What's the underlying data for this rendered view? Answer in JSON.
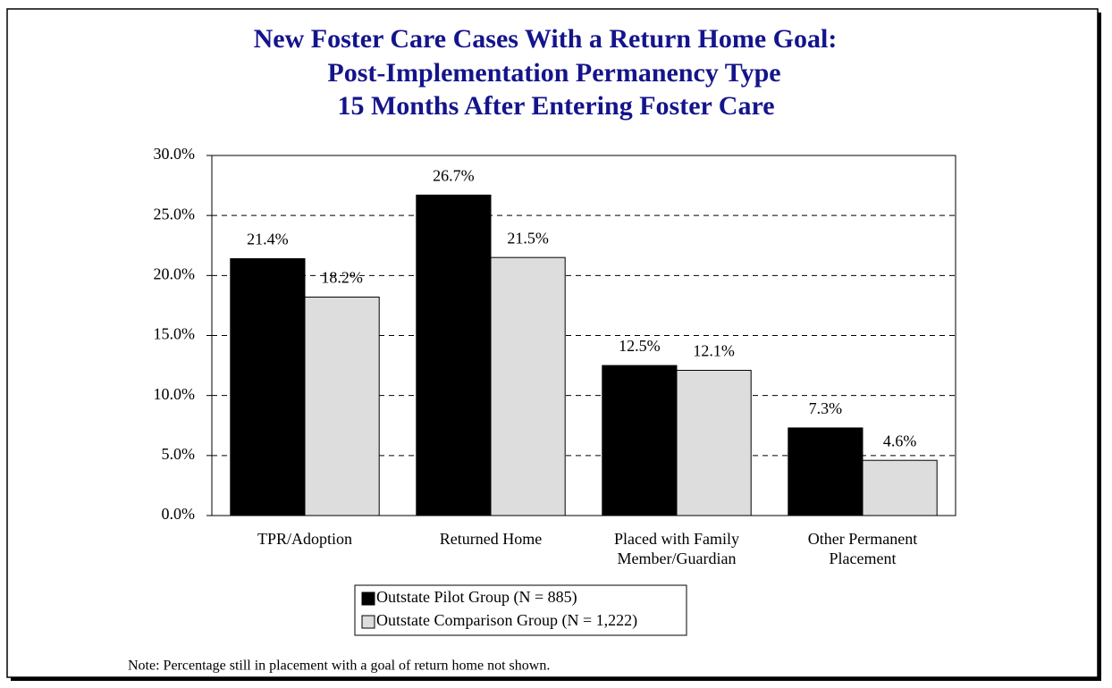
{
  "chart_data": {
    "type": "bar",
    "title": [
      "New Foster Care Cases With a Return Home Goal:",
      "Post-Implementation Permanency Type",
      "15 Months After Entering Foster Care"
    ],
    "categories": [
      "TPR/Adoption",
      "Returned Home",
      "Placed with Family\nMember/Guardian",
      "Other Permanent\nPlacement"
    ],
    "series": [
      {
        "name": "Outstate Pilot Group (N = 885)",
        "color": "#000000",
        "values": [
          21.4,
          26.7,
          12.5,
          7.3
        ],
        "value_labels": [
          "21.4%",
          "26.7%",
          "12.5%",
          "7.3%"
        ]
      },
      {
        "name": "Outstate Comparison Group (N = 1,222)",
        "color": "#dddddd",
        "values": [
          18.2,
          21.5,
          12.1,
          4.6
        ],
        "value_labels": [
          "18.2%",
          "21.5%",
          "12.1%",
          "4.6%"
        ]
      }
    ],
    "ylim": [
      0,
      30
    ],
    "yticks": [
      {
        "value": 0,
        "label": "0.0%"
      },
      {
        "value": 5,
        "label": "5.0%"
      },
      {
        "value": 10,
        "label": "10.0%"
      },
      {
        "value": 15,
        "label": "15.0%"
      },
      {
        "value": 20,
        "label": "20.0%"
      },
      {
        "value": 25,
        "label": "25.0%"
      },
      {
        "value": 30,
        "label": "30.0%"
      }
    ],
    "grid": true,
    "note": "Note:  Percentage still in placement with a goal of return home not shown."
  }
}
